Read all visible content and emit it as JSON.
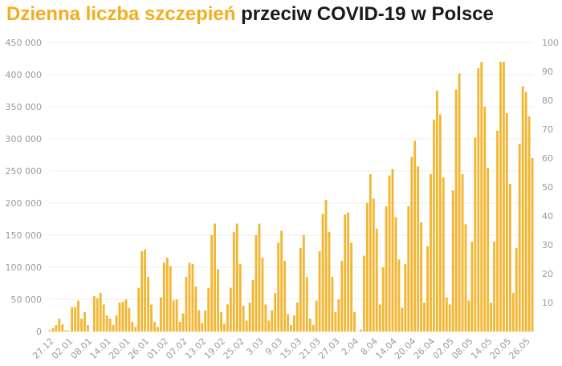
{
  "title": {
    "highlight": "Dzienna liczba szczepień",
    "rest": "przeciw COVID-19 w Polsce"
  },
  "chart_data": {
    "type": "bar",
    "y_left": {
      "lim": [
        0,
        450000
      ],
      "ticks": [
        "0",
        "50 000",
        "100 000",
        "150 000",
        "200 000",
        "250 000",
        "300 000",
        "350 000",
        "400 000",
        "450 000"
      ]
    },
    "y_right": {
      "lim": [
        0,
        100
      ],
      "ticks": [
        "10",
        "20",
        "30",
        "40",
        "50",
        "60",
        "70",
        "80",
        "90",
        "100"
      ]
    },
    "x_tick_labels": [
      {
        "i": 0,
        "label": "27.12"
      },
      {
        "i": 6,
        "label": "02.01"
      },
      {
        "i": 12,
        "label": "08.01"
      },
      {
        "i": 18,
        "label": "14.01"
      },
      {
        "i": 24,
        "label": "20.01"
      },
      {
        "i": 30,
        "label": "26.01"
      },
      {
        "i": 36,
        "label": "01.02"
      },
      {
        "i": 42,
        "label": "07.02"
      },
      {
        "i": 48,
        "label": "13.02"
      },
      {
        "i": 54,
        "label": "19.02"
      },
      {
        "i": 60,
        "label": "25.02"
      },
      {
        "i": 66,
        "label": "3.03"
      },
      {
        "i": 72,
        "label": "9.03"
      },
      {
        "i": 78,
        "label": "15.03"
      },
      {
        "i": 84,
        "label": "21.03"
      },
      {
        "i": 90,
        "label": "27.03"
      },
      {
        "i": 96,
        "label": "2.04"
      },
      {
        "i": 102,
        "label": "8.04"
      },
      {
        "i": 108,
        "label": "14.04"
      },
      {
        "i": 114,
        "label": "20.04"
      },
      {
        "i": 120,
        "label": "26.04"
      },
      {
        "i": 126,
        "label": "02.05"
      },
      {
        "i": 132,
        "label": "08.05"
      },
      {
        "i": 138,
        "label": "14.05"
      },
      {
        "i": 144,
        "label": "20.05"
      },
      {
        "i": 150,
        "label": "26.05"
      }
    ],
    "values": [
      2000,
      5000,
      10000,
      20000,
      11000,
      2000,
      1000,
      38000,
      38000,
      48000,
      20000,
      30000,
      10000,
      0,
      55000,
      52000,
      60000,
      42000,
      25000,
      20000,
      10000,
      25000,
      45000,
      46000,
      50000,
      37000,
      15000,
      7000,
      68000,
      125000,
      128000,
      85000,
      42000,
      15000,
      7000,
      53000,
      107000,
      115000,
      102000,
      48000,
      50000,
      15000,
      28000,
      85000,
      107000,
      105000,
      70000,
      33000,
      13000,
      33000,
      68000,
      150000,
      168000,
      97000,
      30000,
      12000,
      42000,
      68000,
      155000,
      168000,
      105000,
      40000,
      17000,
      45000,
      80000,
      150000,
      168000,
      115000,
      42000,
      17000,
      33000,
      60000,
      138000,
      157000,
      110000,
      27000,
      10000,
      25000,
      45000,
      130000,
      150000,
      85000,
      20000,
      10000,
      48000,
      125000,
      183000,
      205000,
      155000,
      85000,
      30000,
      50000,
      110000,
      182000,
      185000,
      138000,
      30000,
      0,
      3000,
      118000,
      200000,
      245000,
      207000,
      160000,
      42000,
      100000,
      195000,
      243000,
      253000,
      178000,
      112000,
      37000,
      105000,
      195000,
      272000,
      297000,
      257000,
      170000,
      45000,
      133000,
      245000,
      330000,
      375000,
      338000,
      240000,
      53000,
      42000,
      220000,
      377000,
      402000,
      245000,
      167000,
      48000,
      140000,
      302000,
      410000,
      420000,
      350000,
      255000,
      45000,
      140000,
      313000,
      420000,
      420000,
      340000,
      230000,
      60000,
      130000,
      292000,
      382000,
      373000,
      335000,
      270000
    ]
  }
}
